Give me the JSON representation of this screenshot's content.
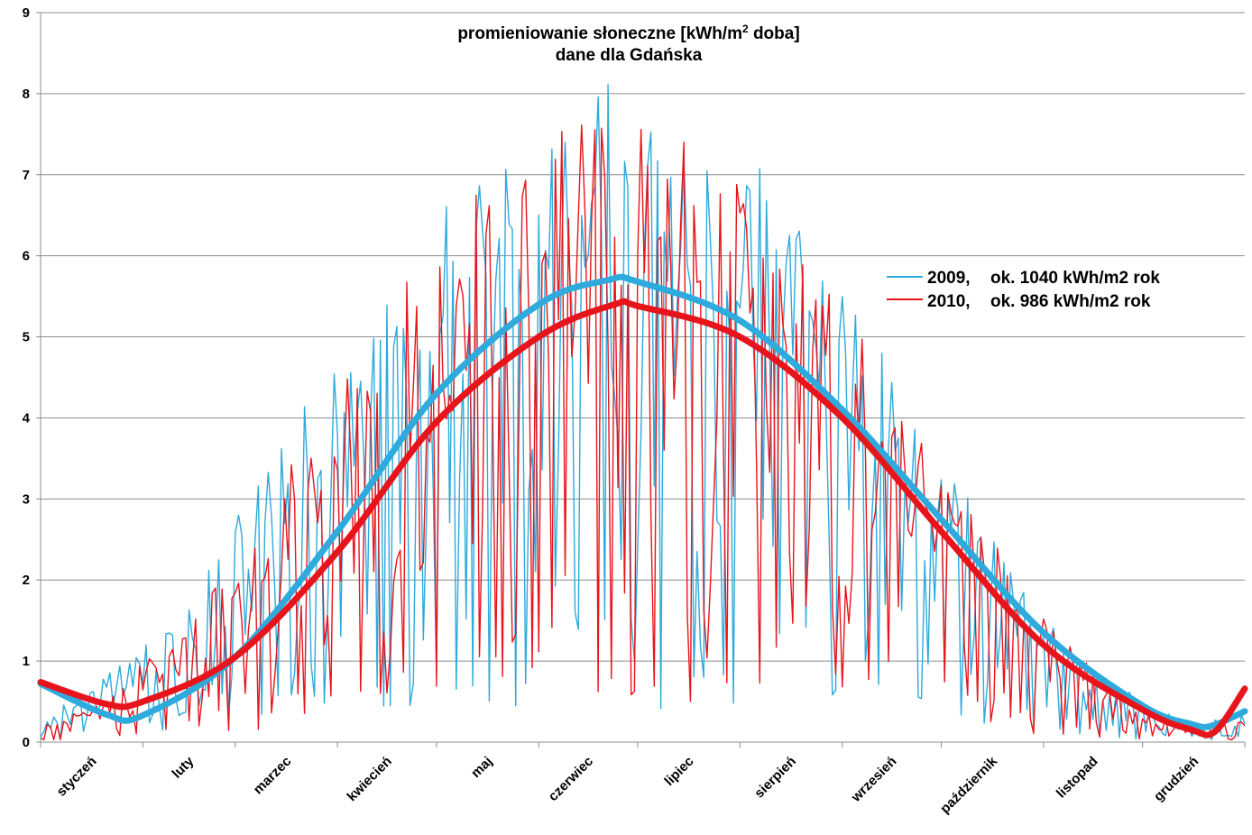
{
  "chart_data": {
    "type": "line",
    "title_line1_pre": "promieniowanie słoneczne [kWh/m",
    "title_line1_sup": "2",
    "title_line1_post": " doba]",
    "title_line2": "dane dla Gdańska",
    "ylim": [
      0,
      9
    ],
    "y_ticks": [
      "0",
      "1",
      "2",
      "3",
      "4",
      "5",
      "6",
      "7",
      "8",
      "9"
    ],
    "x_days": [
      0,
      365
    ],
    "categories": [
      "styczeń",
      "luty",
      "marzec",
      "kwiecień",
      "maj",
      "czerwiec",
      "lipiec",
      "sierpień",
      "wrzesień",
      "październik",
      "listopad",
      "grudzień"
    ],
    "grid": "horizontal",
    "legend_position": "right",
    "legend": [
      {
        "year": "2009,",
        "label": "ok. 1040 kWh/m2 rok",
        "color": "#2eaadc"
      },
      {
        "year": "2010,",
        "label": "ok. 986 kWh/m2 rok",
        "color": "#e8141c"
      }
    ],
    "series": [
      {
        "name": "2009",
        "kind": "daily",
        "color": "#2eaadc",
        "seed": 2009,
        "envelope": {
          "mean": 2.95,
          "amp": 2.75,
          "peak_day": 172
        }
      },
      {
        "name": "2010",
        "kind": "daily",
        "color": "#e8141c",
        "seed": 2010,
        "envelope": {
          "mean": 2.76,
          "amp": 2.64,
          "peak_day": 174
        }
      },
      {
        "name": "2009 trend",
        "kind": "trend",
        "color": "#2eaadc",
        "points": [
          [
            0,
            0.72
          ],
          [
            20,
            0.34
          ],
          [
            31,
            0.33
          ],
          [
            59,
            1.05
          ],
          [
            90,
            2.6
          ],
          [
            120,
            4.3
          ],
          [
            151,
            5.4
          ],
          [
            172,
            5.7
          ],
          [
            181,
            5.68
          ],
          [
            212,
            5.2
          ],
          [
            243,
            4.1
          ],
          [
            273,
            2.75
          ],
          [
            304,
            1.35
          ],
          [
            334,
            0.45
          ],
          [
            349,
            0.22
          ],
          [
            355,
            0.2
          ],
          [
            365,
            0.38
          ]
        ]
      },
      {
        "name": "2010 trend",
        "kind": "trend",
        "color": "#e8141c",
        "points": [
          [
            0,
            0.74
          ],
          [
            20,
            0.47
          ],
          [
            31,
            0.5
          ],
          [
            59,
            1.05
          ],
          [
            90,
            2.35
          ],
          [
            120,
            3.95
          ],
          [
            151,
            5.0
          ],
          [
            174,
            5.4
          ],
          [
            181,
            5.38
          ],
          [
            212,
            5.0
          ],
          [
            243,
            4.0
          ],
          [
            273,
            2.6
          ],
          [
            304,
            1.2
          ],
          [
            334,
            0.4
          ],
          [
            349,
            0.15
          ],
          [
            356,
            0.13
          ],
          [
            365,
            0.66
          ]
        ]
      }
    ]
  }
}
